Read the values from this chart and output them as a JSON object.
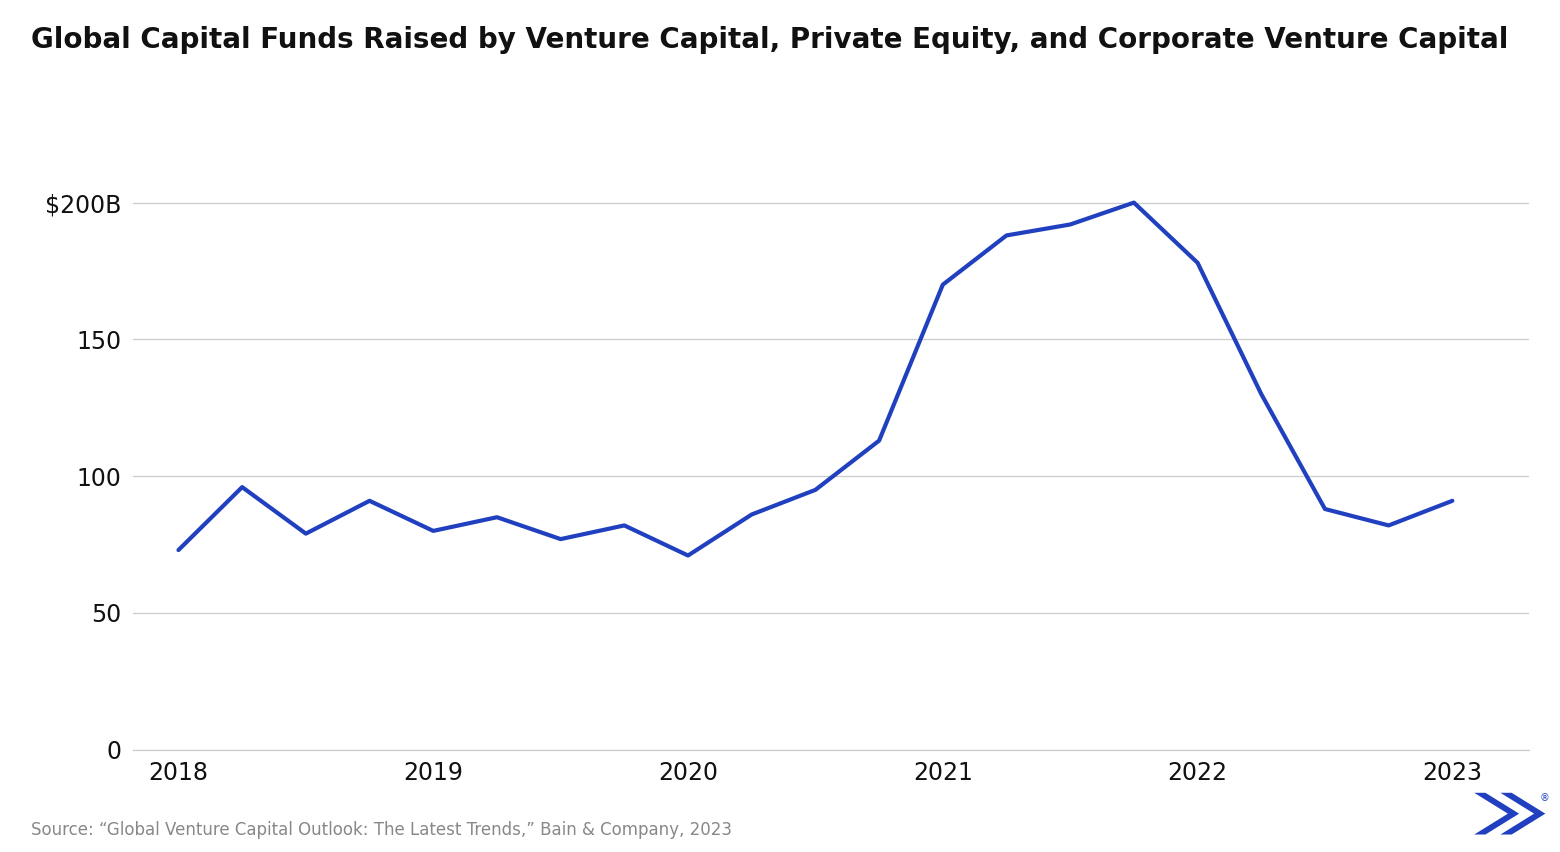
{
  "title": "Global Capital Funds Raised by Venture Capital, Private Equity, and Corporate Venture Capital",
  "source_text": "Source: “Global Venture Capital Outlook: The Latest Trends,” Bain & Company, 2023",
  "line_color": "#2040c0",
  "line_width": 3.0,
  "background_color": "#ffffff",
  "x_values": [
    2018.0,
    2018.25,
    2018.5,
    2018.75,
    2019.0,
    2019.25,
    2019.5,
    2019.75,
    2020.0,
    2020.25,
    2020.5,
    2020.75,
    2021.0,
    2021.25,
    2021.5,
    2021.75,
    2022.0,
    2022.25,
    2022.5,
    2022.75,
    2023.0
  ],
  "y_values": [
    73,
    96,
    79,
    91,
    80,
    85,
    77,
    82,
    71,
    86,
    95,
    113,
    170,
    188,
    192,
    200,
    178,
    130,
    88,
    82,
    91
  ],
  "yticks": [
    0,
    50,
    100,
    150,
    200
  ],
  "ytick_labels": [
    "0",
    "50",
    "100",
    "150",
    "$200B"
  ],
  "xtick_positions": [
    2018,
    2019,
    2020,
    2021,
    2022,
    2023
  ],
  "xtick_labels": [
    "2018",
    "2019",
    "2020",
    "2021",
    "2022",
    "2023"
  ],
  "ylim": [
    0,
    218
  ],
  "xlim": [
    2017.82,
    2023.3
  ],
  "logo_color": "#2040c0",
  "title_fontsize": 20,
  "tick_fontsize": 17,
  "source_fontsize": 12,
  "grid_color": "#cccccc",
  "text_color": "#111111",
  "source_color": "#888888"
}
